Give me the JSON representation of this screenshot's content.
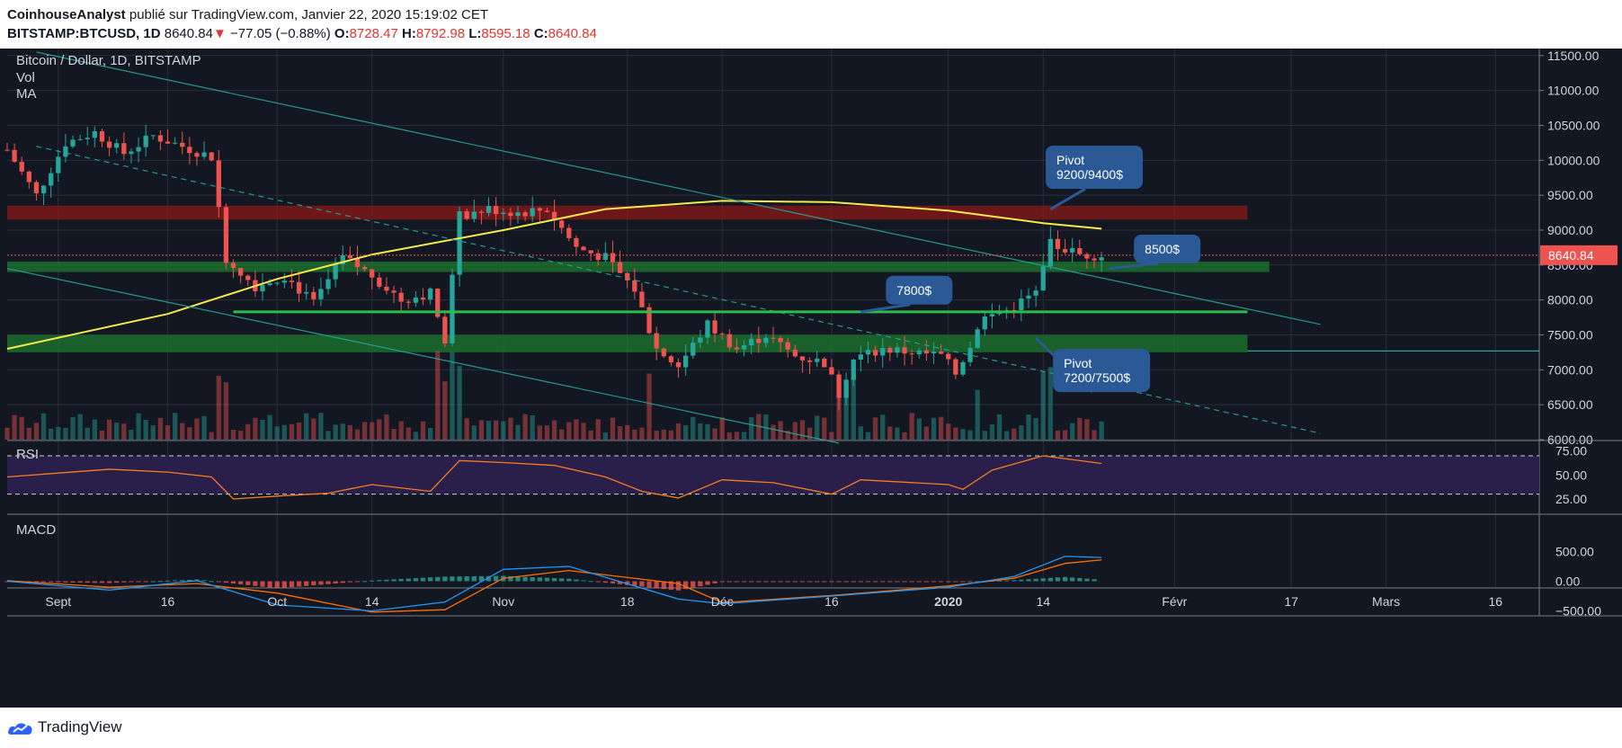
{
  "header": {
    "author": "CoinhouseAnalyst",
    "published_text": "publié sur TradingView.com, Janvier 22, 2020 15:19:02 CET",
    "symbol": "BITSTAMP:BTCUSD, 1D",
    "last": "8640.84",
    "arrow": "▼",
    "change": "−77.05 (−0.88%)",
    "o_label": "O:",
    "o_value": "8728.47",
    "h_label": "H:",
    "h_value": "8792.98",
    "l_label": "L:",
    "l_value": "8595.18",
    "c_label": "C:",
    "c_value": "8640.84"
  },
  "footer": {
    "brand": "TradingView"
  },
  "colors": {
    "background": "#131722",
    "grid": "#2a2e39",
    "up": "#26a69a",
    "down": "#ef5350",
    "ma": "#f5e94a",
    "resistance_zone": "#8b1a1a",
    "support_zone": "#1e7a2e",
    "label_box": "#2a5996",
    "rsi_band": "#2a1e4a",
    "rsi_line": "#f57c1f",
    "macd_line": "#2196f3",
    "signal_line": "#ff6d00"
  },
  "chart_data": {
    "type": "candlestick",
    "title": "Bitcoin / Dollar, 1D, BITSTAMP",
    "indicator_labels": [
      "Vol",
      "MA"
    ],
    "price_axis": {
      "ticks": [
        6000,
        6500,
        7000,
        7500,
        8000,
        8500,
        9000,
        9500,
        10000,
        10500,
        11000,
        11500
      ],
      "tick_labels": [
        "6000.00",
        "6500.00",
        "7000.00",
        "7500.00",
        "8000.00",
        "8500.00",
        "9000.00",
        "9500.00",
        "10000.00",
        "10500.00",
        "11000.00",
        "11500.00"
      ],
      "range": [
        6000,
        11600
      ]
    },
    "current_price": "8640.84",
    "x_axis": {
      "start_date": "2019-08-25",
      "end_date": "2020-03-22",
      "ticks": [
        {
          "date": "2019-09-01",
          "label": "Sept",
          "bold": false
        },
        {
          "date": "2019-09-16",
          "label": "16",
          "bold": false
        },
        {
          "date": "2019-10-01",
          "label": "Oct",
          "bold": false
        },
        {
          "date": "2019-10-14",
          "label": "14",
          "bold": false
        },
        {
          "date": "2019-11-01",
          "label": "Nov",
          "bold": false
        },
        {
          "date": "2019-11-18",
          "label": "18",
          "bold": false
        },
        {
          "date": "2019-12-01",
          "label": "Déc",
          "bold": false
        },
        {
          "date": "2019-12-16",
          "label": "16",
          "bold": false
        },
        {
          "date": "2020-01-01",
          "label": "2020",
          "bold": true
        },
        {
          "date": "2020-01-14",
          "label": "14",
          "bold": false
        },
        {
          "date": "2020-02-01",
          "label": "Févr",
          "bold": false
        },
        {
          "date": "2020-02-17",
          "label": "17",
          "bold": false
        },
        {
          "date": "2020-03-01",
          "label": "Mars",
          "bold": false
        },
        {
          "date": "2020-03-16",
          "label": "16",
          "bold": false
        }
      ]
    },
    "close_series": [
      {
        "date": "2019-08-25",
        "close": 10150
      },
      {
        "date": "2019-08-29",
        "close": 9500
      },
      {
        "date": "2019-09-02",
        "close": 10250
      },
      {
        "date": "2019-09-06",
        "close": 10400
      },
      {
        "date": "2019-09-10",
        "close": 10100
      },
      {
        "date": "2019-09-14",
        "close": 10350
      },
      {
        "date": "2019-09-18",
        "close": 10200
      },
      {
        "date": "2019-09-22",
        "close": 10050
      },
      {
        "date": "2019-09-24",
        "close": 8600
      },
      {
        "date": "2019-09-28",
        "close": 8200
      },
      {
        "date": "2019-10-02",
        "close": 8350
      },
      {
        "date": "2019-10-06",
        "close": 7950
      },
      {
        "date": "2019-10-10",
        "close": 8600
      },
      {
        "date": "2019-10-14",
        "close": 8350
      },
      {
        "date": "2019-10-18",
        "close": 8000
      },
      {
        "date": "2019-10-22",
        "close": 8100
      },
      {
        "date": "2019-10-24",
        "close": 7450
      },
      {
        "date": "2019-10-26",
        "close": 9200
      },
      {
        "date": "2019-10-30",
        "close": 9300
      },
      {
        "date": "2019-11-03",
        "close": 9250
      },
      {
        "date": "2019-11-07",
        "close": 9300
      },
      {
        "date": "2019-11-11",
        "close": 8750
      },
      {
        "date": "2019-11-15",
        "close": 8600
      },
      {
        "date": "2019-11-19",
        "close": 8150
      },
      {
        "date": "2019-11-22",
        "close": 7300
      },
      {
        "date": "2019-11-25",
        "close": 7050
      },
      {
        "date": "2019-11-29",
        "close": 7650
      },
      {
        "date": "2019-12-03",
        "close": 7300
      },
      {
        "date": "2019-12-07",
        "close": 7500
      },
      {
        "date": "2019-12-11",
        "close": 7200
      },
      {
        "date": "2019-12-15",
        "close": 7100
      },
      {
        "date": "2019-12-17",
        "close": 6650
      },
      {
        "date": "2019-12-19",
        "close": 7150
      },
      {
        "date": "2019-12-23",
        "close": 7300
      },
      {
        "date": "2019-12-27",
        "close": 7250
      },
      {
        "date": "2019-12-31",
        "close": 7200
      },
      {
        "date": "2020-01-02",
        "close": 6950
      },
      {
        "date": "2020-01-06",
        "close": 7750
      },
      {
        "date": "2020-01-09",
        "close": 7850
      },
      {
        "date": "2020-01-13",
        "close": 8100
      },
      {
        "date": "2020-01-15",
        "close": 8800
      },
      {
        "date": "2020-01-19",
        "close": 8650
      },
      {
        "date": "2020-01-22",
        "close": 8640
      }
    ],
    "ma_series": [
      {
        "date": "2019-08-25",
        "value": 7300
      },
      {
        "date": "2019-09-16",
        "value": 7800
      },
      {
        "date": "2019-10-01",
        "value": 8300
      },
      {
        "date": "2019-10-14",
        "value": 8650
      },
      {
        "date": "2019-11-01",
        "value": 9000
      },
      {
        "date": "2019-11-15",
        "value": 9300
      },
      {
        "date": "2019-12-01",
        "value": 9420
      },
      {
        "date": "2019-12-16",
        "value": 9400
      },
      {
        "date": "2020-01-01",
        "value": 9280
      },
      {
        "date": "2020-01-14",
        "value": 9100
      },
      {
        "date": "2020-01-22",
        "value": 9020
      }
    ],
    "zones": [
      {
        "kind": "resistance",
        "from": 9150,
        "to": 9350,
        "start": "2019-08-25",
        "end": "2020-02-11"
      },
      {
        "kind": "support",
        "from": 8400,
        "to": 8550,
        "start": "2019-08-25",
        "end": "2020-02-14"
      },
      {
        "kind": "support",
        "from": 7250,
        "to": 7500,
        "start": "2019-08-25",
        "end": "2020-02-11"
      }
    ],
    "hlines": [
      {
        "value": 7830,
        "start": "2019-09-25",
        "end": "2020-02-11"
      },
      {
        "value": 7270,
        "start": "2020-02-11",
        "end": "2020-03-22"
      }
    ],
    "trendlines": [
      {
        "from": {
          "date": "2019-08-29",
          "price": 11550
        },
        "to": {
          "date": "2020-02-21",
          "price": 7650
        },
        "dashed": false
      },
      {
        "from": {
          "date": "2019-08-25",
          "price": 8450
        },
        "to": {
          "date": "2019-12-17",
          "price": 5950
        },
        "dashed": false
      },
      {
        "from": {
          "date": "2019-08-29",
          "price": 10200
        },
        "to": {
          "date": "2020-02-21",
          "price": 6090
        },
        "dashed": true
      }
    ],
    "annotations": [
      {
        "lines": [
          "Pivot",
          "9200/9400$"
        ],
        "date": "2020-01-21",
        "price": 9900,
        "pointer": {
          "date": "2020-01-15",
          "price": 9300
        }
      },
      {
        "lines": [
          "8500$"
        ],
        "date": "2020-01-31",
        "price": 8730,
        "pointer": {
          "date": "2020-01-23",
          "price": 8450
        }
      },
      {
        "lines": [
          "7800$"
        ],
        "date": "2019-12-28",
        "price": 8140,
        "pointer": {
          "date": "2019-12-20",
          "price": 7830
        }
      },
      {
        "lines": [
          "Pivot",
          "7200/7500$"
        ],
        "date": "2020-01-22",
        "price": 6990,
        "pointer": {
          "date": "2020-01-13",
          "price": 7450
        }
      }
    ],
    "rsi": {
      "label": "RSI",
      "ticks": [
        25,
        50,
        75
      ],
      "tick_labels": [
        "25.00",
        "50.00",
        "75.00"
      ],
      "band": [
        30,
        70
      ],
      "series": [
        {
          "date": "2019-08-25",
          "value": 48
        },
        {
          "date": "2019-09-01",
          "value": 52
        },
        {
          "date": "2019-09-08",
          "value": 56
        },
        {
          "date": "2019-09-16",
          "value": 53
        },
        {
          "date": "2019-09-22",
          "value": 48
        },
        {
          "date": "2019-09-25",
          "value": 25
        },
        {
          "date": "2019-10-01",
          "value": 28
        },
        {
          "date": "2019-10-08",
          "value": 31
        },
        {
          "date": "2019-10-14",
          "value": 40
        },
        {
          "date": "2019-10-22",
          "value": 33
        },
        {
          "date": "2019-10-26",
          "value": 65
        },
        {
          "date": "2019-11-01",
          "value": 63
        },
        {
          "date": "2019-11-08",
          "value": 60
        },
        {
          "date": "2019-11-15",
          "value": 48
        },
        {
          "date": "2019-11-20",
          "value": 33
        },
        {
          "date": "2019-11-25",
          "value": 26
        },
        {
          "date": "2019-12-01",
          "value": 45
        },
        {
          "date": "2019-12-08",
          "value": 42
        },
        {
          "date": "2019-12-16",
          "value": 30
        },
        {
          "date": "2019-12-20",
          "value": 45
        },
        {
          "date": "2020-01-01",
          "value": 40
        },
        {
          "date": "2020-01-03",
          "value": 35
        },
        {
          "date": "2020-01-07",
          "value": 55
        },
        {
          "date": "2020-01-14",
          "value": 70
        },
        {
          "date": "2020-01-18",
          "value": 66
        },
        {
          "date": "2020-01-22",
          "value": 62
        }
      ]
    },
    "macd": {
      "label": "MACD",
      "ticks": [
        -500,
        0,
        500
      ],
      "tick_labels": [
        "−500.00",
        "0.00",
        "500.00"
      ],
      "macd": [
        {
          "date": "2019-08-25",
          "value": 0
        },
        {
          "date": "2019-09-08",
          "value": -150
        },
        {
          "date": "2019-09-20",
          "value": 10
        },
        {
          "date": "2019-10-01",
          "value": -400
        },
        {
          "date": "2019-10-14",
          "value": -500
        },
        {
          "date": "2019-10-24",
          "value": -350
        },
        {
          "date": "2019-11-01",
          "value": 200
        },
        {
          "date": "2019-11-10",
          "value": 250
        },
        {
          "date": "2019-11-25",
          "value": -300
        },
        {
          "date": "2019-12-01",
          "value": -380
        },
        {
          "date": "2019-12-16",
          "value": -250
        },
        {
          "date": "2020-01-01",
          "value": -100
        },
        {
          "date": "2020-01-10",
          "value": 80
        },
        {
          "date": "2020-01-17",
          "value": 420
        },
        {
          "date": "2020-01-22",
          "value": 400
        }
      ],
      "signal": [
        {
          "date": "2019-08-25",
          "value": 10
        },
        {
          "date": "2019-09-08",
          "value": -100
        },
        {
          "date": "2019-09-20",
          "value": -40
        },
        {
          "date": "2019-10-01",
          "value": -200
        },
        {
          "date": "2019-10-14",
          "value": -520
        },
        {
          "date": "2019-10-24",
          "value": -480
        },
        {
          "date": "2019-11-01",
          "value": 50
        },
        {
          "date": "2019-11-10",
          "value": 180
        },
        {
          "date": "2019-11-25",
          "value": -40
        },
        {
          "date": "2019-12-01",
          "value": -360
        },
        {
          "date": "2019-12-16",
          "value": -240
        },
        {
          "date": "2020-01-01",
          "value": -80
        },
        {
          "date": "2020-01-10",
          "value": 50
        },
        {
          "date": "2020-01-17",
          "value": 300
        },
        {
          "date": "2020-01-22",
          "value": 360
        }
      ]
    }
  }
}
